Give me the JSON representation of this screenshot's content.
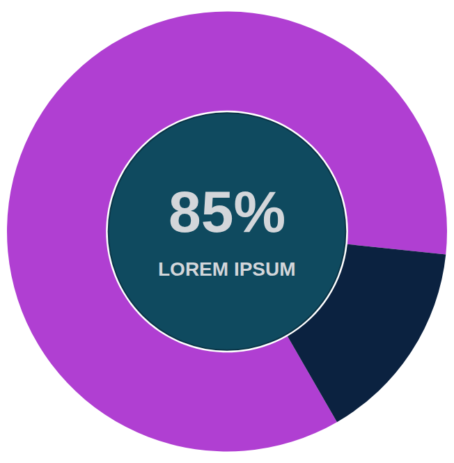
{
  "chart_data": {
    "type": "pie",
    "values": [
      85,
      15
    ],
    "value_labels": [
      "85%",
      null
    ],
    "colors": [
      "#b03fd2",
      "#0b2240"
    ],
    "annotations": [
      "LOREM IPSUM"
    ]
  }
}
